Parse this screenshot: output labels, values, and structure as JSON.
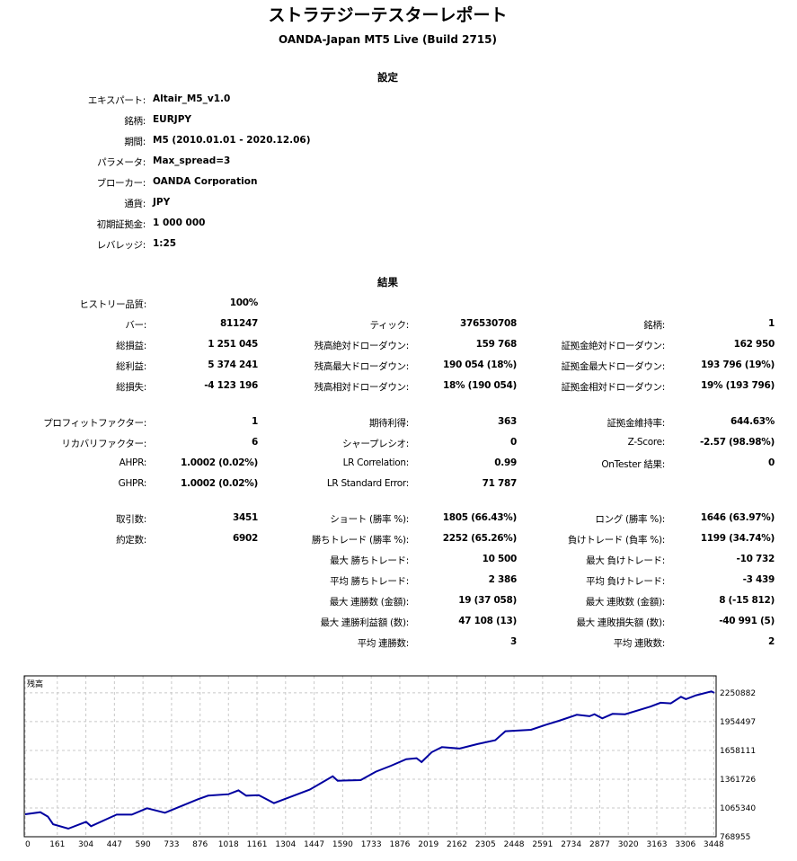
{
  "report": {
    "title": "ストラテジーテスターレポート",
    "subtitle": "OANDA-Japan MT5 Live (Build 2715)"
  },
  "settings": {
    "heading": "設定",
    "rows": [
      {
        "label": "エキスパート:",
        "value": "Altair_M5_v1.0"
      },
      {
        "label": "銘柄:",
        "value": "EURJPY"
      },
      {
        "label": "期間:",
        "value": "M5 (2010.01.01 - 2020.12.06)"
      },
      {
        "label": "パラメータ:",
        "value": "Max_spread=3"
      },
      {
        "label": "ブローカー:",
        "value": "OANDA Corporation"
      },
      {
        "label": "通貨:",
        "value": "JPY"
      },
      {
        "label": "初期証拠金:",
        "value": "1 000 000"
      },
      {
        "label": "レバレッジ:",
        "value": "1:25"
      }
    ]
  },
  "results": {
    "heading": "結果",
    "rows": [
      [
        {
          "label": "ヒストリー品質:",
          "value": "100%"
        }
      ],
      [
        {
          "label": "バー:",
          "value": "811247"
        },
        {
          "label": "ティック:",
          "value": "376530708"
        },
        {
          "label": "銘柄:",
          "value": "1"
        }
      ],
      [
        {
          "label": "総損益:",
          "value": "1 251 045"
        },
        {
          "label": "残高絶対ドローダウン:",
          "value": "159 768"
        },
        {
          "label": "証拠金絶対ドローダウン:",
          "value": "162 950"
        }
      ],
      [
        {
          "label": "総利益:",
          "value": "5 374 241"
        },
        {
          "label": "残高最大ドローダウン:",
          "value": "190 054 (18%)"
        },
        {
          "label": "証拠金最大ドローダウン:",
          "value": "193 796 (19%)"
        }
      ],
      [
        {
          "label": "総損失:",
          "value": "-4 123 196"
        },
        {
          "label": "残高相対ドローダウン:",
          "value": "18% (190 054)"
        },
        {
          "label": "証拠金相対ドローダウン:",
          "value": "19% (193 796)"
        }
      ],
      [
        {
          "label": "プロフィットファクター:",
          "value": "1"
        },
        {
          "label": "期待利得:",
          "value": "363"
        },
        {
          "label": "証拠金維持率:",
          "value": "644.63%"
        }
      ],
      [
        {
          "label": "リカバリファクター:",
          "value": "6"
        },
        {
          "label": "シャープレシオ:",
          "value": "0"
        },
        {
          "label": "Z-Score:",
          "value": "-2.57 (98.98%)"
        }
      ],
      [
        {
          "label": "AHPR:",
          "value": "1.0002 (0.02%)"
        },
        {
          "label": "LR Correlation:",
          "value": "0.99"
        },
        {
          "label": "OnTester 結果:",
          "value": "0"
        }
      ],
      [
        {
          "label": "GHPR:",
          "value": "1.0002 (0.02%)"
        },
        {
          "label": "LR Standard Error:",
          "value": "71 787"
        }
      ],
      [
        {
          "label": "取引数:",
          "value": "3451"
        },
        {
          "label": "ショート (勝率 %):",
          "value": "1805 (66.43%)"
        },
        {
          "label": "ロング (勝率 %):",
          "value": "1646 (63.97%)"
        }
      ],
      [
        {
          "label": "約定数:",
          "value": "6902"
        },
        {
          "label": "勝ちトレード (勝率 %):",
          "value": "2252 (65.26%)"
        },
        {
          "label": "負けトレード (負率 %):",
          "value": "1199 (34.74%)"
        }
      ],
      [
        null,
        {
          "label": "最大 勝ちトレード:",
          "value": "10 500"
        },
        {
          "label": "最大 負けトレード:",
          "value": "-10 732"
        }
      ],
      [
        null,
        {
          "label": "平均 勝ちトレード:",
          "value": "2 386"
        },
        {
          "label": "平均 負けトレード:",
          "value": "-3 439"
        }
      ],
      [
        null,
        {
          "label": "最大 連勝数 (金額):",
          "value": "19 (37 058)"
        },
        {
          "label": "最大 連敗数 (金額):",
          "value": "8 (-15 812)"
        }
      ],
      [
        null,
        {
          "label": "最大 連勝利益額 (数):",
          "value": "47 108 (13)"
        },
        {
          "label": "最大 連敗損失額 (数):",
          "value": "-40 991 (5)"
        }
      ],
      [
        null,
        {
          "label": "平均 連勝数:",
          "value": "3"
        },
        {
          "label": "平均 連敗数:",
          "value": "2"
        }
      ]
    ]
  },
  "chart_data": {
    "type": "line",
    "title": "残高",
    "line_color": "#0000a0",
    "grid": true,
    "x_ticks": [
      "0",
      "161",
      "304",
      "447",
      "590",
      "733",
      "876",
      "1018",
      "1161",
      "1304",
      "1447",
      "1590",
      "1733",
      "1876",
      "2019",
      "2162",
      "2305",
      "2448",
      "2591",
      "2734",
      "2877",
      "3020",
      "3163",
      "3306",
      "3448"
    ],
    "y_ticks": [
      "2250882",
      "1954497",
      "1658111",
      "1361726",
      "1065340",
      "768955"
    ],
    "xlim": [
      0,
      3451
    ],
    "ylim": [
      768955,
      2426000
    ],
    "series": [
      {
        "x": [
          0,
          76,
          114,
          140,
          216,
          305,
          330,
          458,
          534,
          610,
          700,
          865,
          916,
          1018,
          1068,
          1107,
          1170,
          1246,
          1425,
          1540,
          1565,
          1680,
          1756,
          1832,
          1908,
          1960,
          1985,
          2036,
          2087,
          2176,
          2265,
          2354,
          2405,
          2533,
          2609,
          2673,
          2762,
          2826,
          2851,
          2890,
          2941,
          3004,
          3131,
          3182,
          3233,
          3284,
          3309,
          3360,
          3436,
          3451
        ],
        "y": [
          1000000,
          1022000,
          976000,
          898000,
          852000,
          923000,
          877000,
          997000,
          997000,
          1062000,
          1016000,
          1155000,
          1192000,
          1207000,
          1247000,
          1192000,
          1198000,
          1115000,
          1254000,
          1392000,
          1346000,
          1352000,
          1439000,
          1500000,
          1568000,
          1578000,
          1538000,
          1640000,
          1692000,
          1677000,
          1723000,
          1763000,
          1856000,
          1871000,
          1923000,
          1963000,
          2025000,
          2010000,
          2031000,
          1988000,
          2034000,
          2031000,
          2109000,
          2149000,
          2143000,
          2210000,
          2186000,
          2226000,
          2266000,
          2251045
        ]
      }
    ]
  }
}
